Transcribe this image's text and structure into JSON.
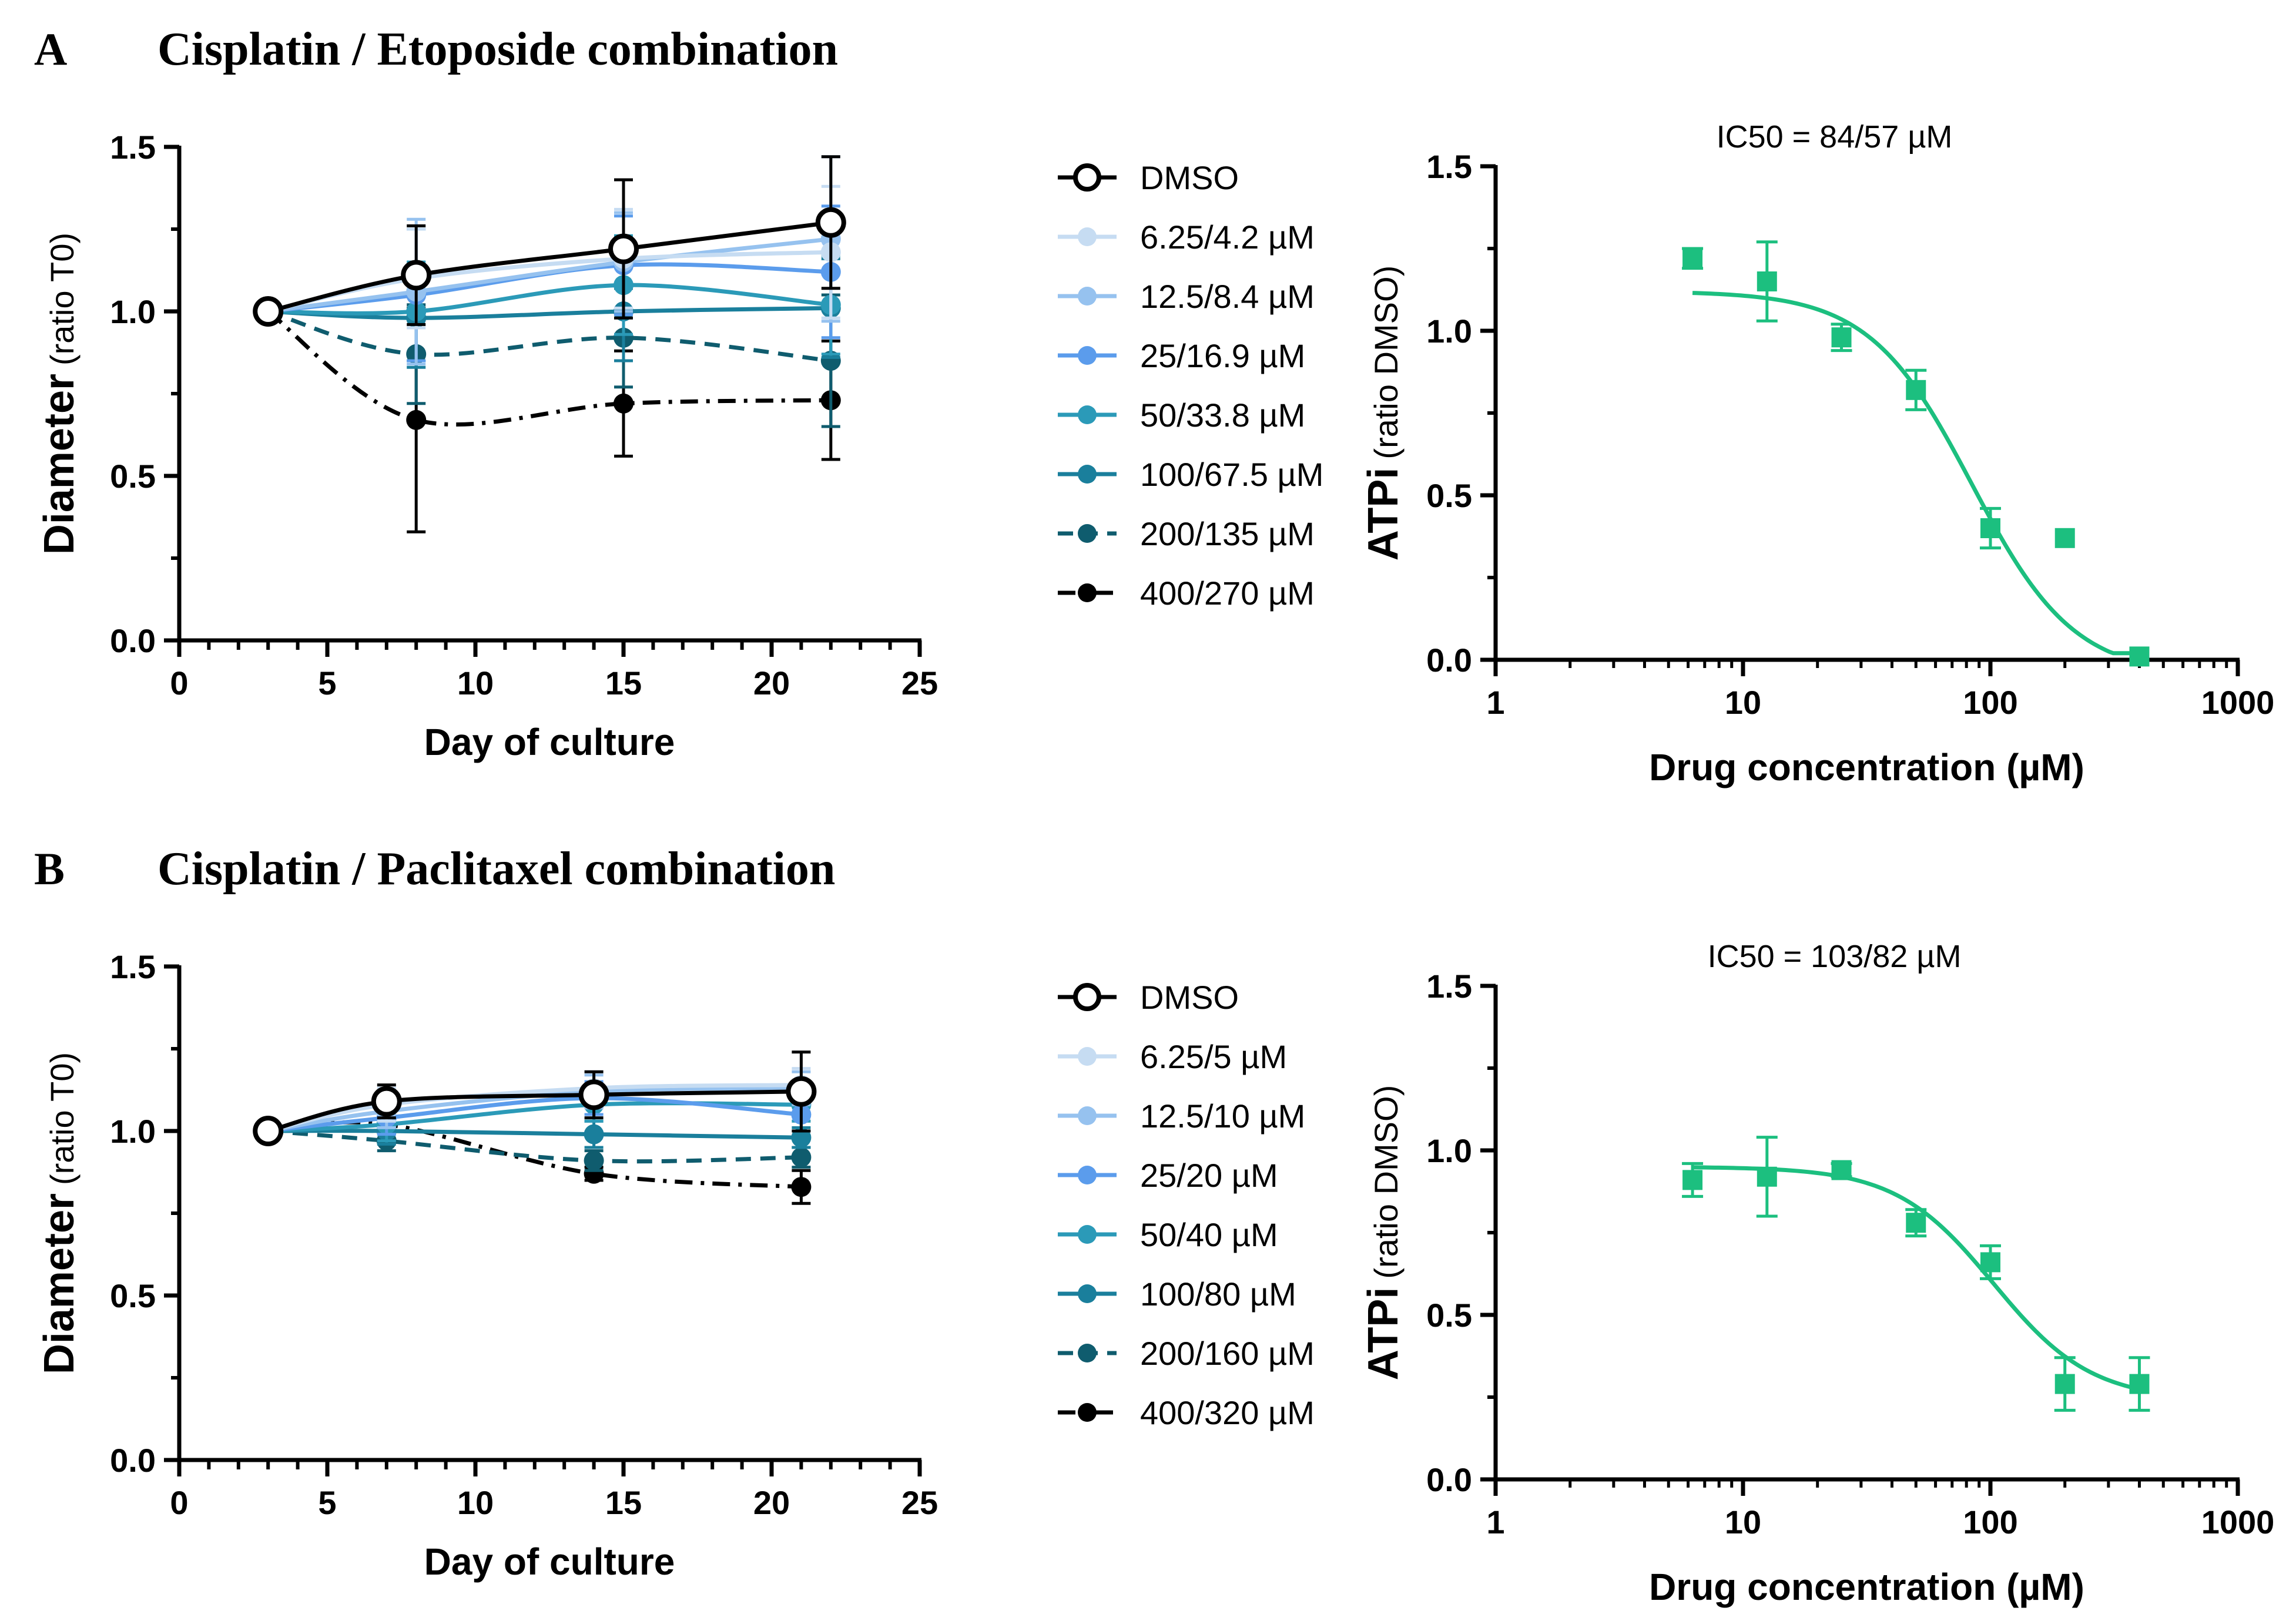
{
  "panels": [
    {
      "letter": "A",
      "title": "Cisplatin / Etoposide combination",
      "series_colors": [
        "#000000",
        "#c6dcf2",
        "#96c2ef",
        "#5b9cec",
        "#2b9ab8",
        "#1a7f9c",
        "#0f5c6e",
        "#000000"
      ],
      "series_dash": [
        "solid",
        "solid",
        "solid",
        "solid",
        "solid",
        "solid",
        "dash",
        "dashdot"
      ],
      "series_open": [
        true,
        false,
        false,
        false,
        false,
        false,
        false,
        false
      ],
      "curve_color": "#1cbf7f",
      "chart_data": [
        {
          "type": "line",
          "xlabel": "Day of culture",
          "ylabel_bold": "Diameter",
          "ylabel_normal": "(ratio T0)",
          "xlim": [
            0,
            25
          ],
          "ylim": [
            0,
            1.5
          ],
          "xticks": [
            "0",
            "5",
            "10",
            "15",
            "20",
            "25"
          ],
          "yticks": [
            "0.0",
            "0.5",
            "1.0",
            "1.5"
          ],
          "x": [
            3,
            8,
            15,
            22
          ],
          "series": [
            {
              "name": "DMSO",
              "values": [
                1.0,
                1.11,
                1.19,
                1.27
              ],
              "err": [
                0,
                0.15,
                0.21,
                0.2
              ]
            },
            {
              "name": "6.25/4.2 µM",
              "values": [
                1.0,
                1.1,
                1.16,
                1.18
              ],
              "err": [
                0,
                0.15,
                0.15,
                0.2
              ]
            },
            {
              "name": "12.5/8.4 µM",
              "values": [
                1.0,
                1.06,
                1.15,
                1.22
              ],
              "err": [
                0,
                0.22,
                0.15,
                0.25
              ]
            },
            {
              "name": "25/16.9 µM",
              "values": [
                1.0,
                1.05,
                1.14,
                1.12
              ],
              "err": [
                0,
                0.2,
                0.15,
                0.2
              ]
            },
            {
              "name": "50/33.8 µM",
              "values": [
                1.0,
                1.0,
                1.08,
                1.02
              ],
              "err": [
                0,
                0.15,
                0.15,
                0.15
              ]
            },
            {
              "name": "100/67.5 µM",
              "values": [
                1.0,
                0.98,
                1.0,
                1.01
              ],
              "err": [
                0,
                0.15,
                0.15,
                0.15
              ]
            },
            {
              "name": "200/135 µM",
              "values": [
                1.0,
                0.87,
                0.92,
                0.85
              ],
              "err": [
                0,
                0.15,
                0.15,
                0.2
              ]
            },
            {
              "name": "400/270 µM",
              "values": [
                1.0,
                0.67,
                0.72,
                0.73
              ],
              "err": [
                0,
                0.34,
                0.16,
                0.18
              ]
            }
          ]
        },
        {
          "type": "scatter",
          "title": "IC50 = 84/57 µM",
          "xlabel": "Drug concentration (µM)",
          "ylabel_bold": "ATPi",
          "ylabel_normal": "(ratio DMSO)",
          "xscale": "log",
          "xlim": [
            1,
            1000
          ],
          "ylim": [
            0,
            1.5
          ],
          "xticks": [
            "1",
            "10",
            "100",
            "1000"
          ],
          "yticks": [
            "0.0",
            "0.5",
            "1.0",
            "1.5"
          ],
          "x": [
            6.25,
            12.5,
            25,
            50,
            100,
            200,
            400
          ],
          "values": [
            1.22,
            1.15,
            0.98,
            0.82,
            0.4,
            0.37,
            0.01
          ],
          "err": [
            0.03,
            0.12,
            0.04,
            0.06,
            0.06,
            0.01,
            0.01
          ],
          "fit": {
            "top": 1.12,
            "bottom": -0.05,
            "ic50": 84,
            "hill": 2.1,
            "xrange": [
              6.25,
              400
            ]
          }
        }
      ]
    },
    {
      "letter": "B",
      "title": "Cisplatin / Paclitaxel combination",
      "series_colors": [
        "#000000",
        "#c6dcf2",
        "#96c2ef",
        "#5b9cec",
        "#2b9ab8",
        "#1a7f9c",
        "#0f5c6e",
        "#000000"
      ],
      "series_dash": [
        "solid",
        "solid",
        "solid",
        "solid",
        "solid",
        "solid",
        "dash",
        "dashdot"
      ],
      "series_open": [
        true,
        false,
        false,
        false,
        false,
        false,
        false,
        false
      ],
      "curve_color": "#1cbf7f",
      "chart_data": [
        {
          "type": "line",
          "xlabel": "Day of culture",
          "ylabel_bold": "Diameter",
          "ylabel_normal": "(ratio T0)",
          "xlim": [
            0,
            25
          ],
          "ylim": [
            0,
            1.5
          ],
          "xticks": [
            "0",
            "5",
            "10",
            "15",
            "20",
            "25"
          ],
          "yticks": [
            "0.0",
            "0.5",
            "1.0",
            "1.5"
          ],
          "x": [
            3,
            7,
            14,
            21
          ],
          "series": [
            {
              "name": "DMSO",
              "values": [
                1.0,
                1.09,
                1.11,
                1.12
              ],
              "err": [
                0,
                0.05,
                0.07,
                0.12
              ]
            },
            {
              "name": "6.25/5 µM",
              "values": [
                1.0,
                1.08,
                1.13,
                1.14
              ],
              "err": [
                0,
                0.05,
                0.05,
                0.05
              ]
            },
            {
              "name": "12.5/10 µM",
              "values": [
                1.0,
                1.06,
                1.12,
                1.13
              ],
              "err": [
                0,
                0.05,
                0.05,
                0.05
              ]
            },
            {
              "name": "25/20 µM",
              "values": [
                1.0,
                1.04,
                1.1,
                1.05
              ],
              "err": [
                0,
                0.05,
                0.05,
                0.05
              ]
            },
            {
              "name": "50/40 µM",
              "values": [
                1.0,
                1.02,
                1.08,
                1.08
              ],
              "err": [
                0,
                0.05,
                0.05,
                0.05
              ]
            },
            {
              "name": "100/80 µM",
              "values": [
                1.0,
                1.0,
                0.99,
                0.98
              ],
              "err": [
                0,
                0.04,
                0.04,
                0.03
              ]
            },
            {
              "name": "200/160 µM",
              "values": [
                1.0,
                0.97,
                0.91,
                0.92
              ],
              "err": [
                0,
                0.03,
                0.03,
                0.03
              ]
            },
            {
              "name": "400/320 µM",
              "values": [
                1.0,
                1.02,
                0.87,
                0.83
              ],
              "err": [
                0,
                0.02,
                0.02,
                0.05
              ]
            }
          ]
        },
        {
          "type": "scatter",
          "title": "IC50 = 103/82 µM",
          "xlabel": "Drug concentration (µM)",
          "ylabel_bold": "ATPi",
          "ylabel_normal": "(ratio DMSO)",
          "xscale": "log",
          "xlim": [
            1,
            1000
          ],
          "ylim": [
            0,
            1.5
          ],
          "xticks": [
            "1",
            "10",
            "100",
            "1000"
          ],
          "yticks": [
            "0.0",
            "0.5",
            "1.0",
            "1.5"
          ],
          "x": [
            6.25,
            12.5,
            25,
            50,
            100,
            200,
            400
          ],
          "values": [
            0.91,
            0.92,
            0.94,
            0.78,
            0.66,
            0.29,
            0.29
          ],
          "err": [
            0.05,
            0.12,
            0.02,
            0.04,
            0.05,
            0.08,
            0.08
          ],
          "fit": {
            "top": 0.95,
            "bottom": 0.24,
            "ic50": 103,
            "hill": 2.2,
            "xrange": [
              6.25,
              400
            ]
          }
        }
      ]
    }
  ]
}
